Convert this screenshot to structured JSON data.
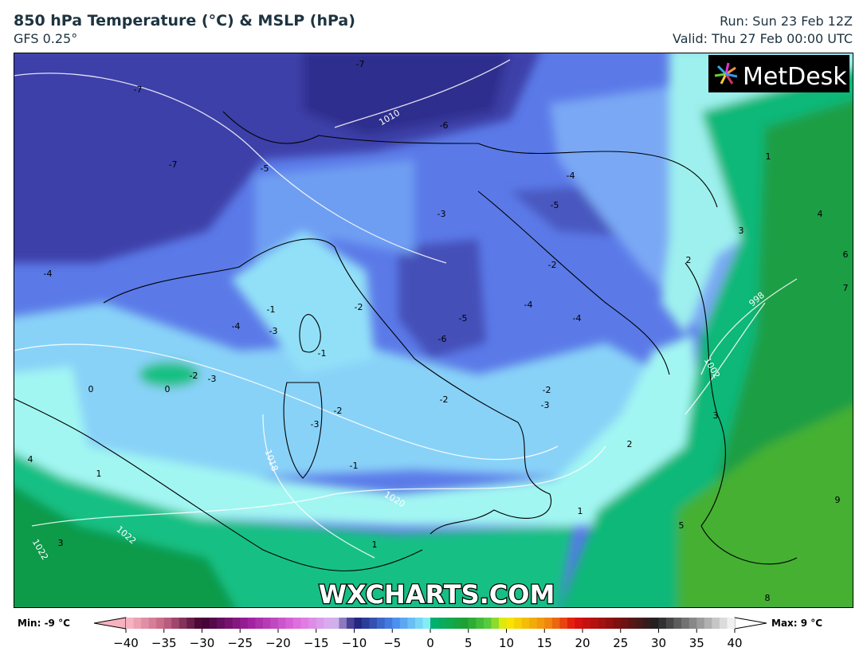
{
  "header": {
    "title": "850 hPa Temperature (°C) & MSLP (hPa)",
    "model": "GFS 0.25°",
    "run": "Run: Sun 23 Feb 12Z",
    "valid": "Valid: Thu 27 Feb 00:00 UTC"
  },
  "logo": "MetDesk",
  "watermark": "WXCHARTS.COM",
  "map": {
    "contour_labels": [
      "-7",
      "-7",
      "-7",
      "-6",
      "-5",
      "-4",
      "-4",
      "-3",
      "-4",
      "-5",
      "-2",
      "-4",
      "-4",
      "-6",
      "-5",
      "-2",
      "-1",
      "-3",
      "-1",
      "-2",
      "-3",
      "0",
      "0",
      "-2",
      "-3",
      "-2",
      "-3",
      "-2",
      "-1",
      "1",
      "1",
      "1",
      "2",
      "3",
      "4",
      "1",
      "5",
      "8",
      "9",
      "4",
      "3",
      "6",
      "7",
      "2",
      "3"
    ],
    "isobar_labels": [
      "1010",
      "998",
      "1002",
      "1018",
      "1022",
      "1022",
      "1020"
    ]
  },
  "colorbar": {
    "min_label": "Min: -9 °C",
    "max_label": "Max: 9 °C",
    "ticks": [
      "−40",
      "−35",
      "−30",
      "−25",
      "−20",
      "−15",
      "−10",
      "−5",
      "0",
      "5",
      "10",
      "15",
      "20",
      "25",
      "30",
      "35",
      "40"
    ]
  }
}
